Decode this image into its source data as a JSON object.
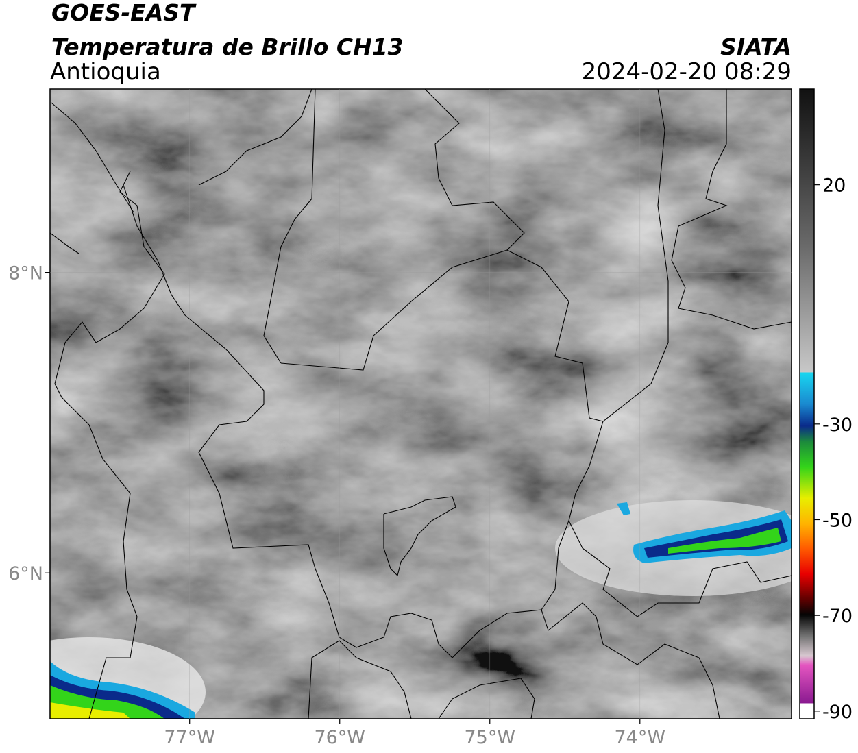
{
  "header": {
    "title": "GOES-EAST",
    "subtitle": "Temperatura de Brillo CH13",
    "region": "Antioquia",
    "source": "SIATA",
    "datetime": "2024-02-20 08:29"
  },
  "map": {
    "xlim": [
      -77.93,
      -72.99
    ],
    "ylim": [
      5.03,
      9.22
    ],
    "xticks": [
      {
        "value": -77,
        "label": "77°W"
      },
      {
        "value": -76,
        "label": "76°W"
      },
      {
        "value": -75,
        "label": "75°W"
      },
      {
        "value": -74,
        "label": "74°W"
      }
    ],
    "yticks": [
      {
        "value": 8,
        "label": "8°N"
      },
      {
        "value": 6,
        "label": "6°N"
      }
    ],
    "grid": true
  },
  "colorbar": {
    "lim": [
      -91.6,
      40
    ],
    "ticks": [
      20,
      -30,
      -50,
      -70,
      -90
    ]
  }
}
